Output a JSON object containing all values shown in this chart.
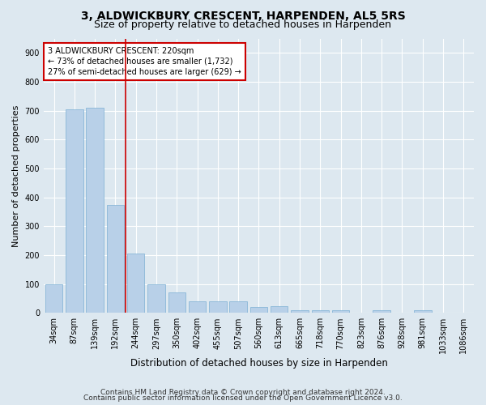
{
  "title": "3, ALDWICKBURY CRESCENT, HARPENDEN, AL5 5RS",
  "subtitle": "Size of property relative to detached houses in Harpenden",
  "xlabel": "Distribution of detached houses by size in Harpenden",
  "ylabel": "Number of detached properties",
  "footer_line1": "Contains HM Land Registry data © Crown copyright and database right 2024.",
  "footer_line2": "Contains public sector information licensed under the Open Government Licence v3.0.",
  "categories": [
    "34sqm",
    "87sqm",
    "139sqm",
    "192sqm",
    "244sqm",
    "297sqm",
    "350sqm",
    "402sqm",
    "455sqm",
    "507sqm",
    "560sqm",
    "613sqm",
    "665sqm",
    "718sqm",
    "770sqm",
    "823sqm",
    "876sqm",
    "928sqm",
    "981sqm",
    "1033sqm",
    "1086sqm"
  ],
  "values": [
    100,
    706,
    710,
    375,
    205,
    100,
    72,
    40,
    40,
    40,
    20,
    22,
    8,
    8,
    8,
    0,
    8,
    0,
    8,
    0,
    0
  ],
  "bar_color": "#b8d0e8",
  "bar_edgecolor": "#7bafd4",
  "bar_linewidth": 0.5,
  "vline_index": 3.5,
  "vline_color": "#cc0000",
  "annotation_line1": "3 ALDWICKBURY CRESCENT: 220sqm",
  "annotation_line2": "← 73% of detached houses are smaller (1,732)",
  "annotation_line3": "27% of semi-detached houses are larger (629) →",
  "annotation_box_facecolor": "white",
  "annotation_box_edgecolor": "#cc0000",
  "ylim": [
    0,
    950
  ],
  "yticks": [
    0,
    100,
    200,
    300,
    400,
    500,
    600,
    700,
    800,
    900
  ],
  "background_color": "#dde8f0",
  "axes_background": "#dde8f0",
  "grid_color": "white",
  "title_fontsize": 10,
  "subtitle_fontsize": 9,
  "xlabel_fontsize": 8.5,
  "ylabel_fontsize": 8,
  "tick_fontsize": 7,
  "annotation_fontsize": 7,
  "footer_fontsize": 6.5
}
